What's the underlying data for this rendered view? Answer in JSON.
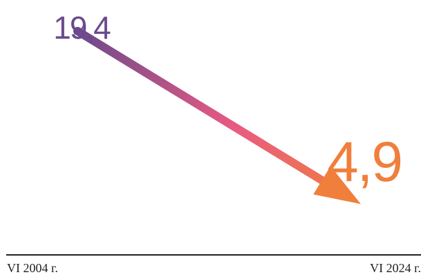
{
  "chart_data": {
    "type": "line",
    "categories": [
      "VI 2004 г.",
      "VI 2024 г."
    ],
    "values": [
      19.4,
      4.9
    ],
    "data_labels": [
      "19,4",
      "4,9"
    ],
    "ylim": [
      0,
      22
    ],
    "grid": false,
    "legend": "none",
    "colors": {
      "start": "#6a4a8c",
      "middle": "#e85a82",
      "end": "#f07f3c",
      "axis": "#222222"
    }
  }
}
